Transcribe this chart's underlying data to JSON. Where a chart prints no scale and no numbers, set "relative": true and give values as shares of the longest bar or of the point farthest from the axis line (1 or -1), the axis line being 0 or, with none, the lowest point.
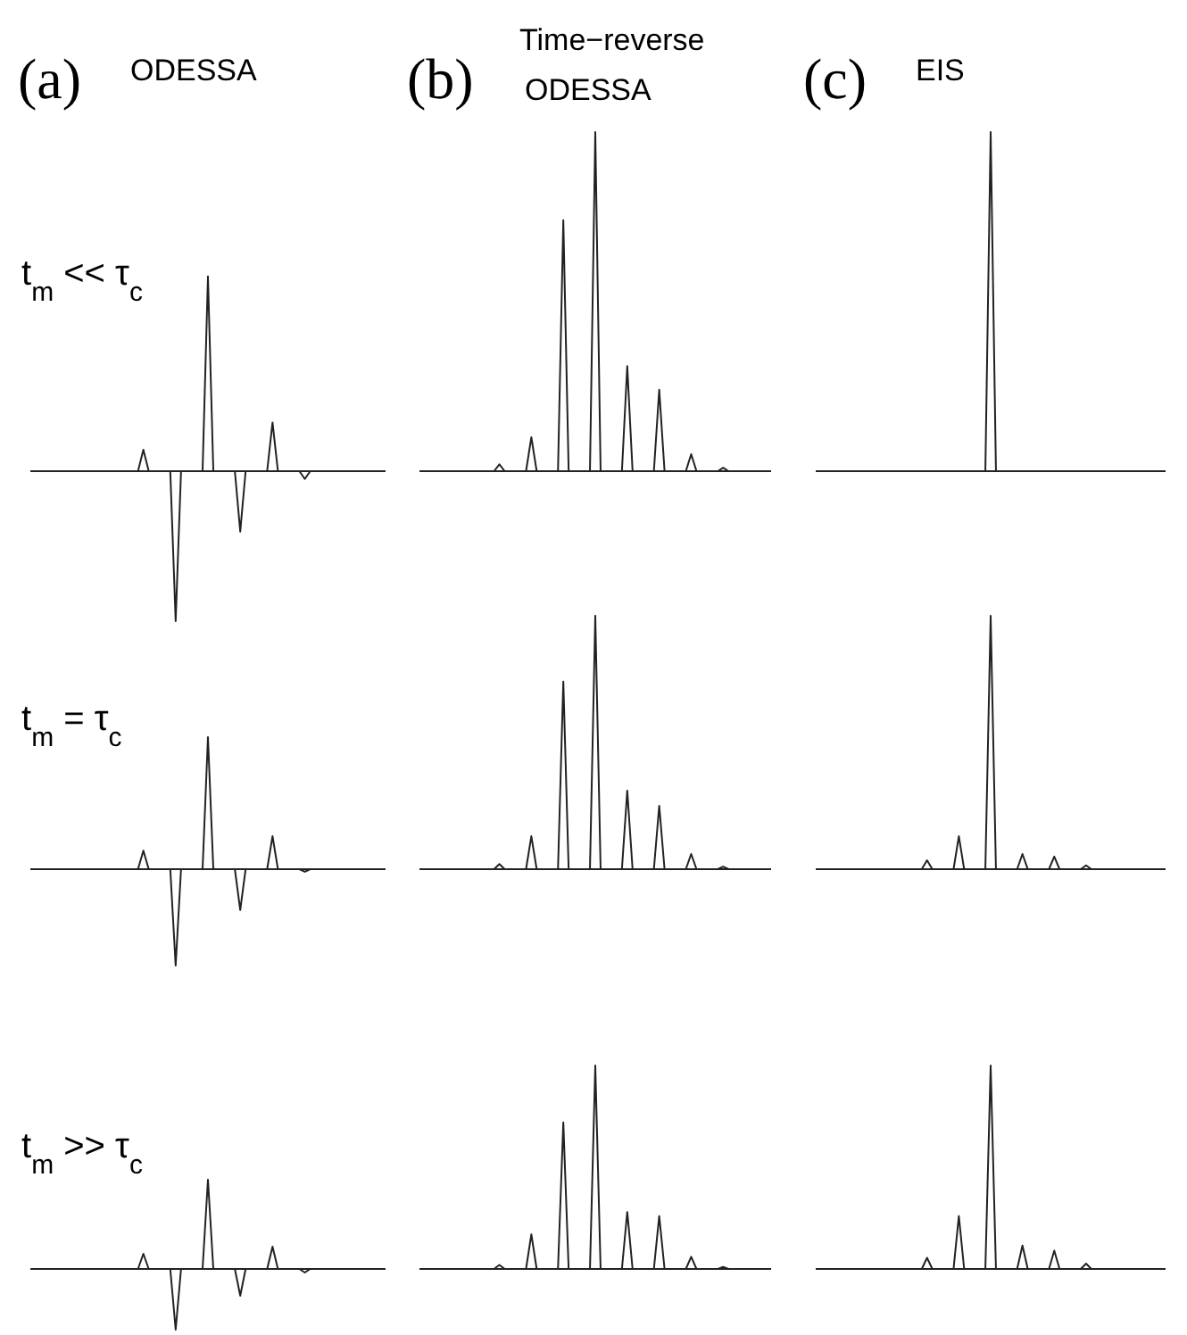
{
  "chart_data": [
    {
      "type": "line",
      "title": "(a) ODESSA",
      "ylabel": "t$_{m}$ << τ$_{c}$",
      "relative": true,
      "color": "#222222",
      "categories": [
        null,
        null,
        null,
        null,
        null,
        null,
        null,
        null,
        null,
        null,
        null,
        null,
        null,
        null,
        null,
        null,
        null,
        null,
        null,
        null,
        null,
        null,
        null,
        null,
        null,
        null,
        null,
        null,
        null,
        null,
        null,
        null,
        null,
        null,
        null,
        null,
        null,
        null,
        null,
        null,
        null,
        null,
        null,
        null,
        null,
        null,
        null,
        null,
        null,
        null,
        null,
        null,
        null,
        null,
        null,
        null,
        null,
        null,
        null,
        null,
        null,
        null,
        null,
        null,
        null,
        null,
        null
      ],
      "values": [
        0,
        0,
        0,
        0,
        0,
        0,
        0,
        0,
        0,
        0,
        0,
        0,
        0,
        0,
        0,
        0,
        0,
        0,
        0,
        0,
        0,
        0.11,
        0,
        0,
        0,
        0,
        0,
        -0.77,
        0,
        0,
        0,
        0,
        0,
        1,
        0,
        0,
        0,
        0,
        0,
        -0.31,
        0,
        0,
        0,
        0,
        0,
        0.25,
        0,
        0,
        0,
        0,
        0,
        -0.04,
        0,
        0,
        0,
        0,
        0,
        0,
        0,
        0,
        0,
        0,
        0,
        0,
        0,
        0,
        0
      ]
    },
    {
      "type": "line",
      "title": "(b) Time−reverse ODESSA",
      "relative": true,
      "color": "#222222",
      "categories": [
        null,
        null,
        null,
        null,
        null,
        null,
        null,
        null,
        null,
        null,
        null,
        null,
        null,
        null,
        null,
        null,
        null,
        null,
        null,
        null,
        null,
        null,
        null,
        null,
        null,
        null,
        null,
        null,
        null,
        null,
        null,
        null,
        null,
        null,
        null,
        null,
        null,
        null,
        null,
        null,
        null,
        null,
        null,
        null,
        null,
        null,
        null,
        null,
        null,
        null,
        null,
        null,
        null,
        null,
        null,
        null,
        null,
        null,
        null,
        null,
        null,
        null,
        null,
        null,
        null,
        null,
        null
      ],
      "values": [
        0,
        0,
        0,
        0,
        0,
        0,
        0,
        0,
        0,
        0,
        0,
        0,
        0,
        0,
        0,
        0.02,
        0,
        0,
        0,
        0,
        0,
        0.1,
        0,
        0,
        0,
        0,
        0,
        0.74,
        0,
        0,
        0,
        0,
        0,
        1,
        0,
        0,
        0,
        0,
        0,
        0.31,
        0,
        0,
        0,
        0,
        0,
        0.24,
        0,
        0,
        0,
        0,
        0,
        0.05,
        0,
        0,
        0,
        0,
        0,
        0.01,
        0,
        0,
        0,
        0,
        0,
        0,
        0,
        0,
        0
      ]
    },
    {
      "type": "line",
      "title": "(c) EIS",
      "relative": true,
      "color": "#222222",
      "categories": [
        null,
        null,
        null,
        null,
        null,
        null,
        null,
        null,
        null,
        null,
        null,
        null,
        null,
        null,
        null,
        null,
        null,
        null,
        null,
        null,
        null,
        null,
        null,
        null,
        null,
        null,
        null,
        null,
        null,
        null,
        null,
        null,
        null,
        null,
        null,
        null,
        null,
        null,
        null,
        null,
        null,
        null,
        null,
        null,
        null,
        null,
        null,
        null,
        null,
        null,
        null,
        null,
        null,
        null,
        null,
        null,
        null,
        null,
        null,
        null,
        null,
        null,
        null,
        null,
        null,
        null,
        null
      ],
      "values": [
        0,
        0,
        0,
        0,
        0,
        0,
        0,
        0,
        0,
        0,
        0,
        0,
        0,
        0,
        0,
        0,
        0,
        0,
        0,
        0,
        0,
        0,
        0,
        0,
        0,
        0,
        0,
        0,
        0,
        0,
        0,
        0,
        0,
        1,
        0,
        0,
        0,
        0,
        0,
        0,
        0,
        0,
        0,
        0,
        0,
        0,
        0,
        0,
        0,
        0,
        0,
        0,
        0,
        0,
        0,
        0,
        0,
        0,
        0,
        0,
        0,
        0,
        0,
        0,
        0,
        0,
        0
      ]
    },
    {
      "type": "line",
      "ylabel": "t$_{m}$ = τ$_{c}$",
      "relative": true,
      "color": "#222222",
      "categories": [
        null,
        null,
        null,
        null,
        null,
        null,
        null,
        null,
        null,
        null,
        null,
        null,
        null,
        null,
        null,
        null,
        null,
        null,
        null,
        null,
        null,
        null,
        null,
        null,
        null,
        null,
        null,
        null,
        null,
        null,
        null,
        null,
        null,
        null,
        null,
        null,
        null,
        null,
        null,
        null,
        null,
        null,
        null,
        null,
        null,
        null,
        null,
        null,
        null,
        null,
        null,
        null,
        null,
        null,
        null,
        null,
        null,
        null,
        null,
        null,
        null,
        null,
        null,
        null,
        null,
        null,
        null
      ],
      "values": [
        0,
        0,
        0,
        0,
        0,
        0,
        0,
        0,
        0,
        0,
        0,
        0,
        0,
        0,
        0,
        0,
        0,
        0,
        0,
        0,
        0,
        0.14,
        0,
        0,
        0,
        0,
        0,
        -0.73,
        0,
        0,
        0,
        0,
        0,
        1,
        0,
        0,
        0,
        0,
        0,
        -0.31,
        0,
        0,
        0,
        0,
        0,
        0.25,
        0,
        0,
        0,
        0,
        0,
        -0.02,
        0,
        0,
        0,
        0,
        0,
        0,
        0,
        0,
        0,
        0,
        0,
        0,
        0,
        0,
        0
      ]
    },
    {
      "type": "line",
      "relative": true,
      "color": "#222222",
      "categories": [
        null,
        null,
        null,
        null,
        null,
        null,
        null,
        null,
        null,
        null,
        null,
        null,
        null,
        null,
        null,
        null,
        null,
        null,
        null,
        null,
        null,
        null,
        null,
        null,
        null,
        null,
        null,
        null,
        null,
        null,
        null,
        null,
        null,
        null,
        null,
        null,
        null,
        null,
        null,
        null,
        null,
        null,
        null,
        null,
        null,
        null,
        null,
        null,
        null,
        null,
        null,
        null,
        null,
        null,
        null,
        null,
        null,
        null,
        null,
        null,
        null,
        null,
        null,
        null,
        null,
        null,
        null
      ],
      "values": [
        0,
        0,
        0,
        0,
        0,
        0,
        0,
        0,
        0,
        0,
        0,
        0,
        0,
        0,
        0,
        0.02,
        0,
        0,
        0,
        0,
        0,
        0.13,
        0,
        0,
        0,
        0,
        0,
        0.74,
        0,
        0,
        0,
        0,
        0,
        1,
        0,
        0,
        0,
        0,
        0,
        0.31,
        0,
        0,
        0,
        0,
        0,
        0.25,
        0,
        0,
        0,
        0,
        0,
        0.06,
        0,
        0,
        0,
        0,
        0,
        0.01,
        0,
        0,
        0,
        0,
        0,
        0,
        0,
        0,
        0
      ]
    },
    {
      "type": "line",
      "relative": true,
      "color": "#222222",
      "categories": [
        null,
        null,
        null,
        null,
        null,
        null,
        null,
        null,
        null,
        null,
        null,
        null,
        null,
        null,
        null,
        null,
        null,
        null,
        null,
        null,
        null,
        null,
        null,
        null,
        null,
        null,
        null,
        null,
        null,
        null,
        null,
        null,
        null,
        null,
        null,
        null,
        null,
        null,
        null,
        null,
        null,
        null,
        null,
        null,
        null,
        null,
        null,
        null,
        null,
        null,
        null,
        null,
        null,
        null,
        null,
        null,
        null,
        null,
        null,
        null,
        null,
        null,
        null,
        null,
        null,
        null,
        null
      ],
      "values": [
        0,
        0,
        0,
        0,
        0,
        0,
        0,
        0,
        0,
        0,
        0,
        0,
        0,
        0,
        0,
        0,
        0,
        0,
        0,
        0,
        0,
        0.035,
        0,
        0,
        0,
        0,
        0,
        0.13,
        0,
        0,
        0,
        0,
        0,
        1,
        0,
        0,
        0,
        0,
        0,
        0.06,
        0,
        0,
        0,
        0,
        0,
        0.05,
        0,
        0,
        0,
        0,
        0,
        0.015,
        0,
        0,
        0,
        0,
        0,
        0,
        0,
        0,
        0,
        0,
        0,
        0,
        0,
        0,
        0
      ]
    },
    {
      "type": "line",
      "ylabel": "t$_{m}$ >> τ$_{c}$",
      "relative": true,
      "color": "#222222",
      "categories": [
        null,
        null,
        null,
        null,
        null,
        null,
        null,
        null,
        null,
        null,
        null,
        null,
        null,
        null,
        null,
        null,
        null,
        null,
        null,
        null,
        null,
        null,
        null,
        null,
        null,
        null,
        null,
        null,
        null,
        null,
        null,
        null,
        null,
        null,
        null,
        null,
        null,
        null,
        null,
        null,
        null,
        null,
        null,
        null,
        null,
        null,
        null,
        null,
        null,
        null,
        null,
        null,
        null,
        null,
        null,
        null,
        null,
        null,
        null,
        null,
        null,
        null,
        null,
        null,
        null,
        null,
        null
      ],
      "values": [
        0,
        0,
        0,
        0,
        0,
        0,
        0,
        0,
        0,
        0,
        0,
        0,
        0,
        0,
        0,
        0,
        0,
        0,
        0,
        0,
        0,
        0.17,
        0,
        0,
        0,
        0,
        0,
        -0.68,
        0,
        0,
        0,
        0,
        0,
        1,
        0,
        0,
        0,
        0,
        0,
        -0.3,
        0,
        0,
        0,
        0,
        0,
        0.25,
        0,
        0,
        0,
        0,
        0,
        -0.04,
        0,
        0,
        0,
        0,
        0,
        0,
        0,
        0,
        0,
        0,
        0,
        0,
        0,
        0,
        0
      ]
    },
    {
      "type": "line",
      "relative": true,
      "color": "#222222",
      "categories": [
        null,
        null,
        null,
        null,
        null,
        null,
        null,
        null,
        null,
        null,
        null,
        null,
        null,
        null,
        null,
        null,
        null,
        null,
        null,
        null,
        null,
        null,
        null,
        null,
        null,
        null,
        null,
        null,
        null,
        null,
        null,
        null,
        null,
        null,
        null,
        null,
        null,
        null,
        null,
        null,
        null,
        null,
        null,
        null,
        null,
        null,
        null,
        null,
        null,
        null,
        null,
        null,
        null,
        null,
        null,
        null,
        null,
        null,
        null,
        null,
        null,
        null,
        null,
        null,
        null,
        null,
        null
      ],
      "values": [
        0,
        0,
        0,
        0,
        0,
        0,
        0,
        0,
        0,
        0,
        0,
        0,
        0,
        0,
        0,
        0.02,
        0,
        0,
        0,
        0,
        0,
        0.17,
        0,
        0,
        0,
        0,
        0,
        0.72,
        0,
        0,
        0,
        0,
        0,
        1,
        0,
        0,
        0,
        0,
        0,
        0.28,
        0,
        0,
        0,
        0,
        0,
        0.26,
        0,
        0,
        0,
        0,
        0,
        0.06,
        0,
        0,
        0,
        0,
        0,
        0.01,
        0,
        0,
        0,
        0,
        0,
        0,
        0,
        0,
        0
      ]
    },
    {
      "type": "line",
      "relative": true,
      "color": "#222222",
      "categories": [
        null,
        null,
        null,
        null,
        null,
        null,
        null,
        null,
        null,
        null,
        null,
        null,
        null,
        null,
        null,
        null,
        null,
        null,
        null,
        null,
        null,
        null,
        null,
        null,
        null,
        null,
        null,
        null,
        null,
        null,
        null,
        null,
        null,
        null,
        null,
        null,
        null,
        null,
        null,
        null,
        null,
        null,
        null,
        null,
        null,
        null,
        null,
        null,
        null,
        null,
        null,
        null,
        null,
        null,
        null,
        null,
        null,
        null,
        null,
        null,
        null,
        null,
        null,
        null,
        null,
        null,
        null
      ],
      "values": [
        0,
        0,
        0,
        0,
        0,
        0,
        0,
        0,
        0,
        0,
        0,
        0,
        0,
        0,
        0,
        0,
        0,
        0,
        0,
        0,
        0,
        0.055,
        0,
        0,
        0,
        0,
        0,
        0.26,
        0,
        0,
        0,
        0,
        0,
        1,
        0,
        0,
        0,
        0,
        0,
        0.115,
        0,
        0,
        0,
        0,
        0,
        0.09,
        0,
        0,
        0,
        0,
        0,
        0.026,
        0,
        0,
        0,
        0,
        0,
        0,
        0,
        0,
        0,
        0,
        0,
        0,
        0,
        0,
        0
      ]
    }
  ]
}
